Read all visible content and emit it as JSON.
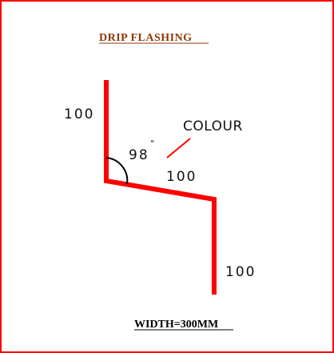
{
  "title": "DRIP FLASHING",
  "dimensions": {
    "top_leg": "100",
    "middle_leg": "100",
    "bottom_leg": "100"
  },
  "angle": {
    "value": "98",
    "degree_symbol": "°"
  },
  "colour_label": "COLOUR",
  "width_label": "WIDTH=300MM",
  "colors": {
    "frame": "#ff0000",
    "flashing_line": "#ff0000",
    "title": "#8b3a0a",
    "text": "#111111"
  }
}
